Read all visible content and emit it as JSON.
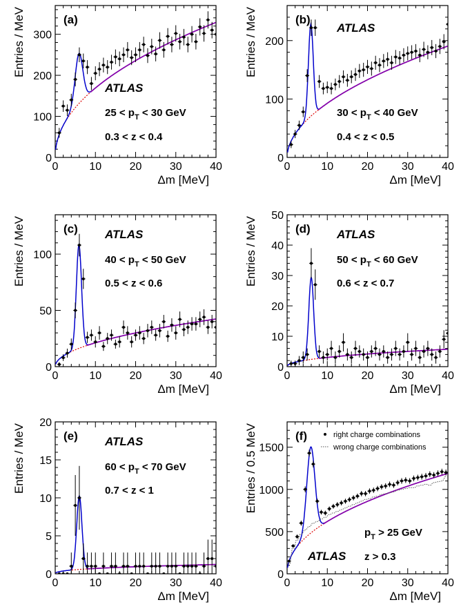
{
  "colors": {
    "fit_total": "#0000cc",
    "background_fit": "#8b00a8",
    "background_extrapolated": "#dd0000",
    "data_points": "#000000",
    "wrong_charge": "#555555"
  },
  "chart_data": [
    {
      "panel": "(a)",
      "type": "scatter",
      "atlas": "ATLAS",
      "annotations": [
        "25 < p_T < 30 GeV",
        "0.3 < z < 0.4"
      ],
      "xlabel": "Δm [MeV]",
      "ylabel": "Entries / MeV",
      "xlim": [
        0,
        40
      ],
      "ylim": [
        0,
        370
      ],
      "xticks": [
        0,
        10,
        20,
        30,
        40
      ],
      "yticks": [
        0,
        100,
        200,
        300
      ],
      "fit": {
        "peak_mean": 5.9,
        "peak_amplitude": 122,
        "peak_width": 0.95,
        "bg_scale": 56,
        "bg_power": 0.48
      },
      "series": [
        {
          "type": "points",
          "x": [
            1,
            2,
            3,
            4,
            5,
            6,
            7,
            8,
            9,
            10,
            11,
            12,
            13,
            14,
            15,
            16,
            17,
            18,
            19,
            20,
            21,
            22,
            23,
            24,
            25,
            26,
            27,
            28,
            29,
            30,
            31,
            32,
            33,
            34,
            35,
            36,
            37,
            38,
            39,
            40
          ],
          "y": [
            60,
            125,
            115,
            140,
            190,
            250,
            235,
            220,
            180,
            205,
            215,
            225,
            220,
            232,
            245,
            240,
            250,
            262,
            243,
            250,
            262,
            275,
            248,
            270,
            252,
            285,
            262,
            295,
            275,
            302,
            282,
            293,
            275,
            300,
            282,
            318,
            302,
            335,
            310,
            300
          ],
          "yerr": [
            12,
            14,
            14,
            15,
            17,
            18,
            18,
            17,
            16,
            17,
            17,
            18,
            17,
            18,
            18,
            18,
            18,
            19,
            18,
            18,
            19,
            19,
            18,
            19,
            18,
            20,
            19,
            20,
            19,
            20,
            19,
            20,
            19,
            20,
            19,
            21,
            20,
            21,
            20,
            20
          ]
        }
      ]
    },
    {
      "panel": "(b)",
      "type": "scatter",
      "atlas": "ATLAS",
      "annotations": [
        "30 < p_T < 40 GeV",
        "0.4 < z < 0.5"
      ],
      "xlabel": "Δm [MeV]",
      "ylabel": "Entries / MeV",
      "xlim": [
        0,
        40
      ],
      "ylim": [
        0,
        260
      ],
      "xticks": [
        0,
        10,
        20,
        30,
        40
      ],
      "yticks": [
        0,
        100,
        200
      ],
      "fit": {
        "peak_mean": 5.9,
        "peak_amplitude": 158,
        "peak_width": 0.6,
        "bg_scale": 28,
        "bg_power": 0.52
      },
      "series": [
        {
          "type": "points",
          "x": [
            1,
            2,
            3,
            4,
            5,
            6,
            7,
            8,
            9,
            10,
            11,
            12,
            13,
            14,
            15,
            16,
            17,
            18,
            19,
            20,
            21,
            22,
            23,
            24,
            25,
            26,
            27,
            28,
            29,
            30,
            31,
            32,
            33,
            34,
            35,
            36,
            37,
            38,
            39,
            40
          ],
          "y": [
            22,
            40,
            55,
            78,
            140,
            222,
            222,
            130,
            118,
            120,
            118,
            125,
            130,
            138,
            132,
            138,
            142,
            148,
            150,
            155,
            152,
            162,
            158,
            165,
            168,
            162,
            172,
            170,
            175,
            178,
            180,
            182,
            175,
            185,
            180,
            188,
            182,
            190,
            198,
            228
          ],
          "yerr": [
            6,
            7,
            8,
            9,
            11,
            14,
            14,
            11,
            10,
            10,
            10,
            10,
            11,
            11,
            11,
            11,
            11,
            12,
            12,
            12,
            12,
            12,
            12,
            12,
            12,
            12,
            12,
            12,
            12,
            12,
            12,
            12,
            12,
            13,
            12,
            13,
            12,
            13,
            13,
            14
          ]
        }
      ]
    },
    {
      "panel": "(c)",
      "type": "scatter",
      "atlas": "ATLAS",
      "annotations": [
        "40 < p_T < 50 GeV",
        "0.5 < z < 0.6"
      ],
      "xlabel": "Δm [MeV]",
      "ylabel": "Entries / MeV",
      "xlim": [
        0,
        40
      ],
      "ylim": [
        0,
        135
      ],
      "xticks": [
        0,
        10,
        20,
        30,
        40
      ],
      "yticks": [
        0,
        50,
        100
      ],
      "fit": {
        "peak_mean": 5.9,
        "peak_amplitude": 92,
        "peak_width": 0.65,
        "bg_scale": 6.7,
        "bg_power": 0.5
      },
      "series": [
        {
          "type": "points",
          "x": [
            1,
            2,
            3,
            4,
            5,
            6,
            7,
            8,
            9,
            10,
            11,
            12,
            13,
            14,
            15,
            16,
            17,
            18,
            19,
            20,
            21,
            22,
            23,
            24,
            25,
            26,
            27,
            28,
            29,
            30,
            31,
            32,
            33,
            34,
            35,
            36,
            37,
            38,
            39,
            40
          ],
          "y": [
            2,
            8,
            12,
            20,
            50,
            108,
            78,
            26,
            28,
            22,
            30,
            18,
            25,
            28,
            20,
            22,
            35,
            30,
            22,
            28,
            30,
            25,
            32,
            35,
            28,
            32,
            40,
            27,
            37,
            30,
            42,
            33,
            35,
            38,
            38,
            42,
            44,
            35,
            40,
            35
          ],
          "yerr": [
            2,
            3,
            4,
            5,
            7,
            10,
            9,
            5,
            5,
            5,
            6,
            4,
            5,
            5,
            4,
            5,
            6,
            6,
            5,
            5,
            6,
            5,
            6,
            6,
            5,
            6,
            6,
            5,
            6,
            6,
            7,
            6,
            6,
            6,
            6,
            7,
            7,
            6,
            6,
            6
          ]
        }
      ]
    },
    {
      "panel": "(d)",
      "type": "scatter",
      "atlas": "ATLAS",
      "annotations": [
        "50 < p_T < 60 GeV",
        "0.6 < z < 0.7"
      ],
      "xlabel": "Δm [MeV]",
      "ylabel": "Entries / MeV",
      "xlim": [
        0,
        40
      ],
      "ylim": [
        0,
        50
      ],
      "xticks": [
        0,
        10,
        20,
        30,
        40
      ],
      "yticks": [
        0,
        10,
        20,
        30,
        40,
        50
      ],
      "fit": {
        "peak_mean": 6.0,
        "peak_amplitude": 27,
        "peak_width": 0.6,
        "bg_scale": 1.05,
        "bg_power": 0.46
      },
      "series": [
        {
          "type": "points",
          "x": [
            1,
            2,
            3,
            4,
            5,
            6,
            7,
            8,
            9,
            10,
            11,
            12,
            13,
            14,
            15,
            16,
            17,
            18,
            19,
            20,
            21,
            22,
            23,
            24,
            25,
            26,
            27,
            28,
            29,
            30,
            31,
            32,
            33,
            34,
            35,
            36,
            37,
            38,
            39,
            40
          ],
          "y": [
            1,
            1,
            2,
            3,
            4,
            34,
            27,
            5,
            3,
            4,
            6,
            3,
            5,
            8,
            4,
            3,
            6,
            5,
            4,
            3,
            5,
            6,
            4,
            5,
            3,
            4,
            6,
            4,
            5,
            8,
            4,
            6,
            3,
            5,
            6,
            4,
            3,
            5,
            9,
            11
          ],
          "yerr": [
            1,
            1,
            1.5,
            2,
            2,
            5,
            5,
            2,
            2,
            2,
            2.5,
            2,
            2,
            3,
            2,
            2,
            2.5,
            2,
            2,
            2,
            2,
            2.5,
            2,
            2,
            2,
            2,
            2.5,
            2,
            2,
            3,
            2,
            2.5,
            2,
            2,
            2.5,
            2,
            2,
            2,
            3,
            3
          ]
        }
      ]
    },
    {
      "panel": "(e)",
      "type": "scatter",
      "atlas": "ATLAS",
      "annotations": [
        "60 < p_T < 70 GeV",
        "0.7 < z < 1"
      ],
      "xlabel": "Δm [MeV]",
      "ylabel": "Entries / MeV",
      "xlim": [
        0,
        40
      ],
      "ylim": [
        0,
        20
      ],
      "xticks": [
        0,
        10,
        20,
        30,
        40
      ],
      "yticks": [
        0,
        5,
        10,
        15,
        20
      ],
      "fit": {
        "peak_mean": 6.0,
        "peak_amplitude": 9.7,
        "peak_width": 0.65,
        "bg_scale": 0.28,
        "bg_power": 0.4
      },
      "series": [
        {
          "type": "points",
          "x": [
            1,
            2,
            3,
            4,
            5,
            6,
            7,
            8,
            9,
            10,
            11,
            12,
            13,
            14,
            15,
            16,
            17,
            18,
            19,
            20,
            21,
            22,
            23,
            24,
            25,
            26,
            27,
            28,
            29,
            30,
            31,
            32,
            33,
            34,
            35,
            36,
            37,
            38,
            39,
            40
          ],
          "y": [
            0,
            0,
            0,
            1,
            9,
            10,
            2,
            1,
            1,
            1,
            0,
            1,
            0,
            1,
            1,
            0,
            1,
            1,
            0,
            1,
            1,
            1,
            0,
            1,
            1,
            1,
            0,
            1,
            1,
            1,
            0,
            1,
            1,
            1,
            1,
            0,
            1,
            2,
            2,
            1
          ],
          "yerr": [
            0,
            0,
            0,
            1.8,
            4,
            4.2,
            2,
            1.8,
            1.8,
            1.8,
            0,
            1.8,
            0,
            1.8,
            1.8,
            0,
            1.8,
            1.8,
            0,
            1.8,
            1.8,
            1.8,
            0,
            1.8,
            1.8,
            1.8,
            0,
            1.8,
            1.8,
            1.8,
            0,
            1.8,
            1.8,
            1.8,
            1.8,
            0,
            1.8,
            2.5,
            2.5,
            1.8
          ]
        }
      ]
    },
    {
      "panel": "(f)",
      "type": "scatter",
      "atlas": "ATLAS",
      "annotations": [
        "p_T > 25 GeV",
        "z > 0.3"
      ],
      "legend": [
        "right charge combinations",
        "wrong charge combinations"
      ],
      "xlabel": "Δm [MeV]",
      "ylabel": "Entries / 0.5 MeV",
      "xlim": [
        0,
        40
      ],
      "ylim": [
        0,
        1800
      ],
      "xticks": [
        0,
        10,
        20,
        30,
        40
      ],
      "yticks": [
        0,
        500,
        1000,
        1500
      ],
      "fit": {
        "peak_mean": 5.9,
        "peak_amplitude": 1020,
        "peak_width": 1.0,
        "bg_scale": 210,
        "bg_power": 0.47
      },
      "series": [
        {
          "name": "right charge combinations",
          "type": "points",
          "x": [
            0.5,
            1.5,
            2.5,
            3.5,
            4.5,
            5.5,
            6.5,
            7.5,
            8.5,
            9.5,
            10.5,
            11.5,
            12.5,
            13.5,
            14.5,
            15.5,
            16.5,
            17.5,
            18.5,
            19.5,
            20.5,
            21.5,
            22.5,
            23.5,
            24.5,
            25.5,
            26.5,
            27.5,
            28.5,
            29.5,
            30.5,
            31.5,
            32.5,
            33.5,
            34.5,
            35.5,
            36.5,
            37.5,
            38.5,
            39.5
          ],
          "y": [
            150,
            330,
            440,
            600,
            1000,
            1430,
            1300,
            860,
            730,
            720,
            770,
            800,
            820,
            840,
            860,
            880,
            900,
            920,
            950,
            950,
            980,
            990,
            1010,
            1030,
            1040,
            1060,
            1050,
            1080,
            1100,
            1110,
            1100,
            1130,
            1140,
            1150,
            1160,
            1180,
            1170,
            1190,
            1210,
            1200
          ],
          "yerr": [
            15,
            20,
            25,
            30,
            35,
            40,
            40,
            30,
            28,
            28,
            28,
            28,
            30,
            30,
            30,
            30,
            30,
            30,
            32,
            32,
            32,
            32,
            32,
            32,
            33,
            33,
            33,
            33,
            34,
            34,
            34,
            34,
            34,
            35,
            35,
            35,
            35,
            35,
            35,
            35
          ]
        },
        {
          "name": "wrong charge combinations",
          "type": "step",
          "x": [
            0.5,
            1.5,
            2.5,
            3.5,
            4.5,
            5.5,
            6.5,
            7.5,
            8.5,
            9.5,
            10.5,
            11.5,
            12.5,
            13.5,
            14.5,
            15.5,
            16.5,
            17.5,
            18.5,
            19.5,
            20.5,
            21.5,
            22.5,
            23.5,
            24.5,
            25.5,
            26.5,
            27.5,
            28.5,
            29.5,
            30.5,
            31.5,
            32.5,
            33.5,
            34.5,
            35.5,
            36.5,
            37.5,
            38.5,
            39.5
          ],
          "y": [
            120,
            300,
            400,
            470,
            520,
            560,
            600,
            620,
            650,
            670,
            700,
            720,
            740,
            760,
            780,
            800,
            820,
            840,
            860,
            880,
            890,
            910,
            920,
            940,
            950,
            960,
            970,
            990,
            1000,
            1010,
            1020,
            1020,
            1040,
            1050,
            1060,
            1050,
            1080,
            1090,
            1100,
            1150
          ]
        }
      ]
    }
  ]
}
